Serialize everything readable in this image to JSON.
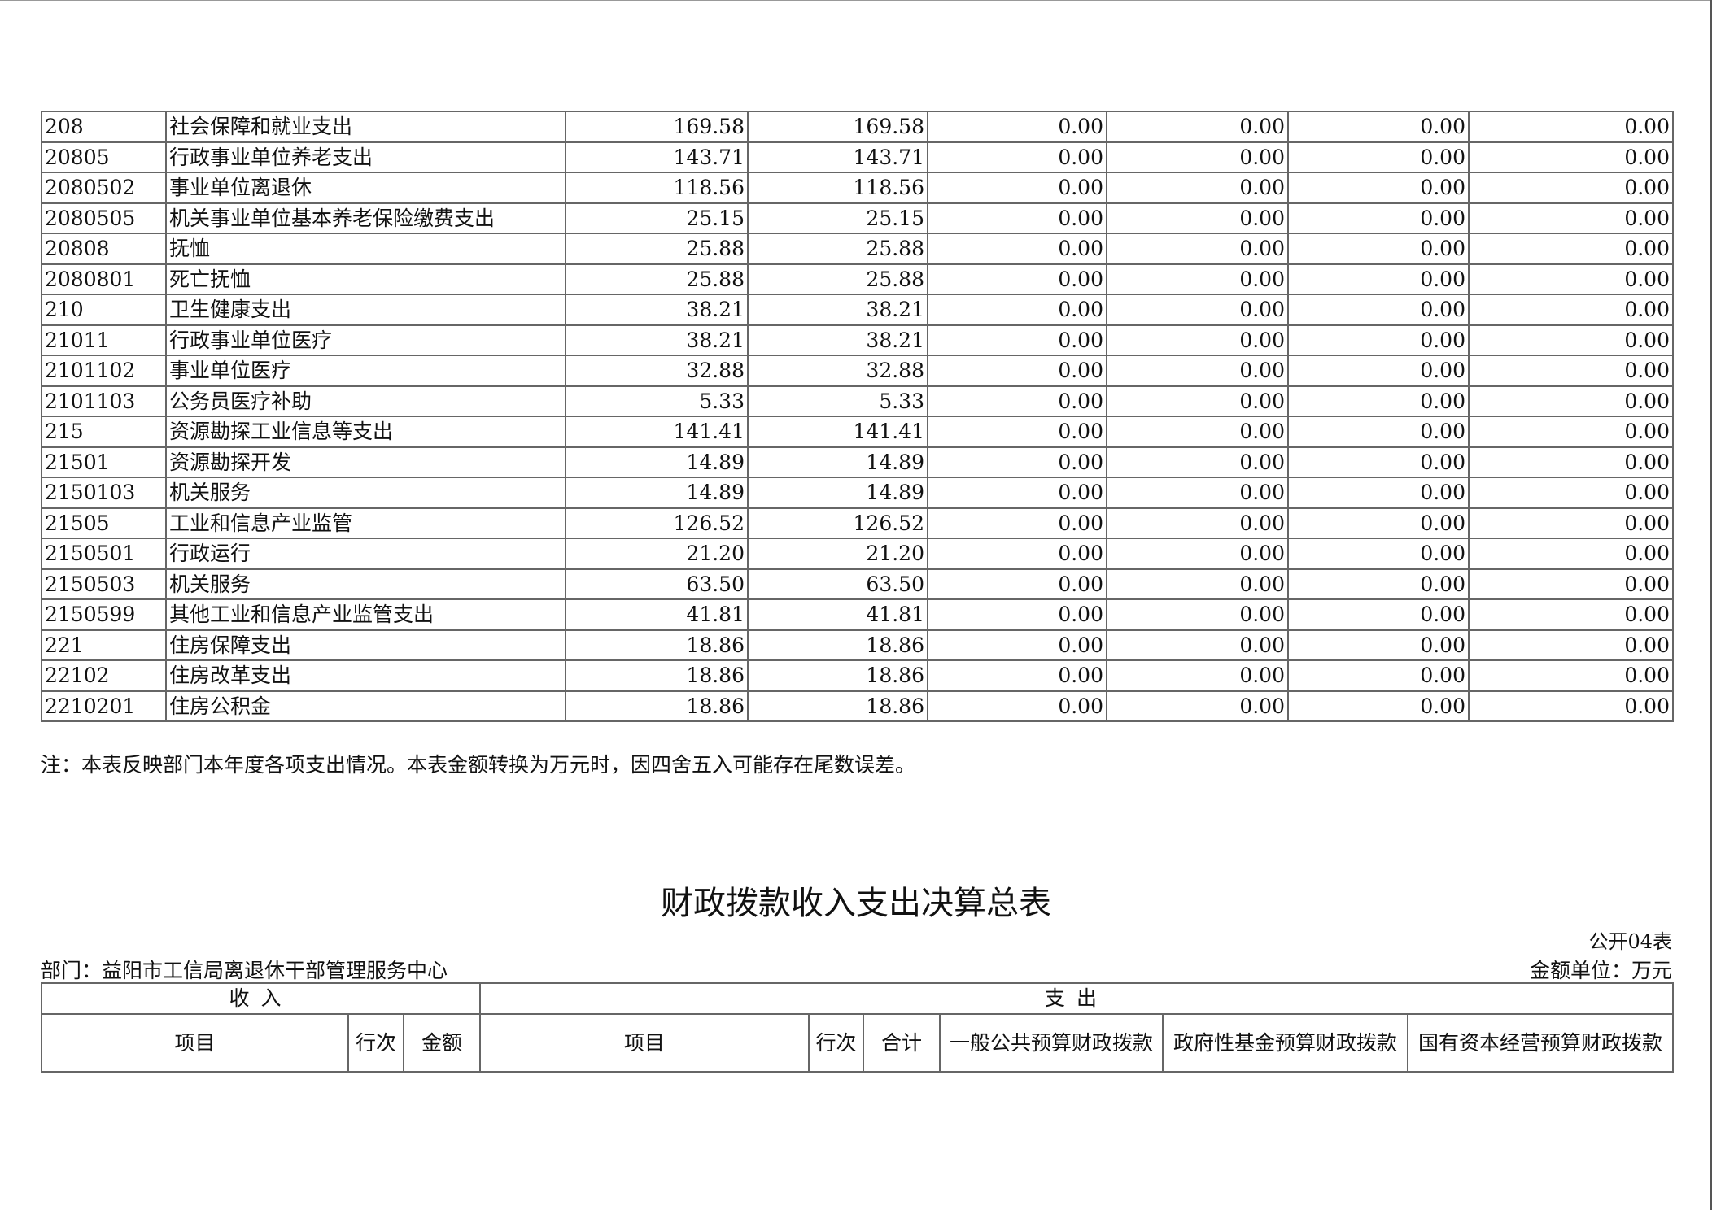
{
  "table1": {
    "rows": [
      [
        "208",
        "社会保障和就业支出",
        "169.58",
        "169.58",
        "0.00",
        "0.00",
        "0.00",
        "0.00"
      ],
      [
        "20805",
        "行政事业单位养老支出",
        "143.71",
        "143.71",
        "0.00",
        "0.00",
        "0.00",
        "0.00"
      ],
      [
        "2080502",
        "事业单位离退休",
        "118.56",
        "118.56",
        "0.00",
        "0.00",
        "0.00",
        "0.00"
      ],
      [
        "2080505",
        "机关事业单位基本养老保险缴费支出",
        "25.15",
        "25.15",
        "0.00",
        "0.00",
        "0.00",
        "0.00"
      ],
      [
        "20808",
        "抚恤",
        "25.88",
        "25.88",
        "0.00",
        "0.00",
        "0.00",
        "0.00"
      ],
      [
        "2080801",
        "死亡抚恤",
        "25.88",
        "25.88",
        "0.00",
        "0.00",
        "0.00",
        "0.00"
      ],
      [
        "210",
        "卫生健康支出",
        "38.21",
        "38.21",
        "0.00",
        "0.00",
        "0.00",
        "0.00"
      ],
      [
        "21011",
        "行政事业单位医疗",
        "38.21",
        "38.21",
        "0.00",
        "0.00",
        "0.00",
        "0.00"
      ],
      [
        "2101102",
        "事业单位医疗",
        "32.88",
        "32.88",
        "0.00",
        "0.00",
        "0.00",
        "0.00"
      ],
      [
        "2101103",
        "公务员医疗补助",
        "5.33",
        "5.33",
        "0.00",
        "0.00",
        "0.00",
        "0.00"
      ],
      [
        "215",
        "资源勘探工业信息等支出",
        "141.41",
        "141.41",
        "0.00",
        "0.00",
        "0.00",
        "0.00"
      ],
      [
        "21501",
        "资源勘探开发",
        "14.89",
        "14.89",
        "0.00",
        "0.00",
        "0.00",
        "0.00"
      ],
      [
        "2150103",
        "机关服务",
        "14.89",
        "14.89",
        "0.00",
        "0.00",
        "0.00",
        "0.00"
      ],
      [
        "21505",
        "工业和信息产业监管",
        "126.52",
        "126.52",
        "0.00",
        "0.00",
        "0.00",
        "0.00"
      ],
      [
        "2150501",
        "行政运行",
        "21.20",
        "21.20",
        "0.00",
        "0.00",
        "0.00",
        "0.00"
      ],
      [
        "2150503",
        "机关服务",
        "63.50",
        "63.50",
        "0.00",
        "0.00",
        "0.00",
        "0.00"
      ],
      [
        "2150599",
        "其他工业和信息产业监管支出",
        "41.81",
        "41.81",
        "0.00",
        "0.00",
        "0.00",
        "0.00"
      ],
      [
        "221",
        "住房保障支出",
        "18.86",
        "18.86",
        "0.00",
        "0.00",
        "0.00",
        "0.00"
      ],
      [
        "22102",
        "住房改革支出",
        "18.86",
        "18.86",
        "0.00",
        "0.00",
        "0.00",
        "0.00"
      ],
      [
        "2210201",
        "住房公积金",
        "18.86",
        "18.86",
        "0.00",
        "0.00",
        "0.00",
        "0.00"
      ]
    ],
    "note": "注：本表反映部门本年度各项支出情况。本表金额转换为万元时，因四舍五入可能存在尾数误差。"
  },
  "table2": {
    "title": "财政拨款收入支出决算总表",
    "code": "公开04表",
    "department": "部门：益阳市工信局离退休干部管理服务中心",
    "unit": "金额单位：万元",
    "income_header": "收入",
    "expense_header": "支出",
    "columns": [
      "项目",
      "行次",
      "金额",
      "项目",
      "行次",
      "合计",
      "一般公共预算财政拨款",
      "政府性基金预算财政拨款",
      "国有资本经营预算财政拨款"
    ]
  }
}
